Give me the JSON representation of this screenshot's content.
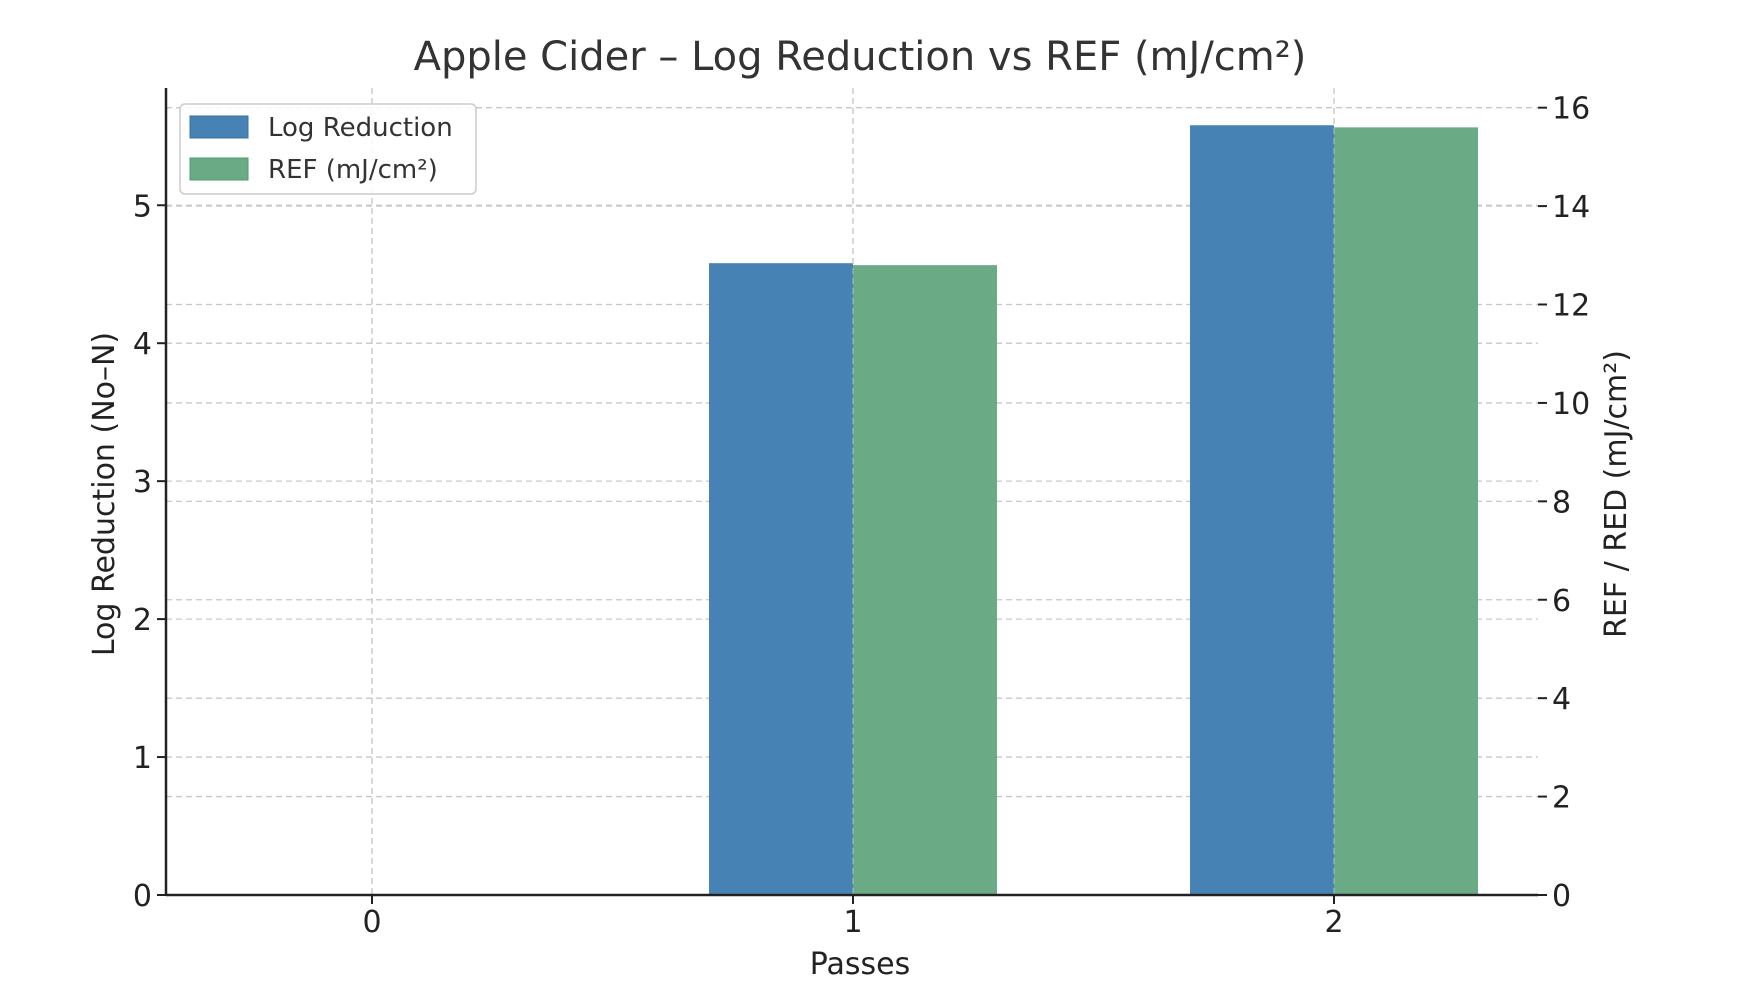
{
  "chart_data": {
    "type": "bar",
    "title": "Apple Cider – Log Reduction vs REF (mJ/cm²)",
    "xlabel": "Passes",
    "ylabel": "Log Reduction (No–N)",
    "y2label": "REF / RED (mJ/cm²)",
    "categories": [
      "0",
      "1",
      "2"
    ],
    "ylim": [
      0,
      5.85
    ],
    "y2lim": [
      0,
      16.4
    ],
    "yticks": [
      "0",
      "1",
      "2",
      "3",
      "4",
      "5"
    ],
    "y2ticks": [
      "0",
      "2",
      "4",
      "6",
      "8",
      "10",
      "12",
      "14",
      "16"
    ],
    "grid": true,
    "legend_position": "top-left",
    "series": [
      {
        "name": "Log Reduction",
        "axis": "left",
        "color": "#4682b4",
        "values": [
          0,
          4.58,
          5.58
        ]
      },
      {
        "name": "REF (mJ/cm²)",
        "axis": "right",
        "color": "#6aab86",
        "values": [
          0,
          12.8,
          15.6
        ]
      }
    ]
  }
}
